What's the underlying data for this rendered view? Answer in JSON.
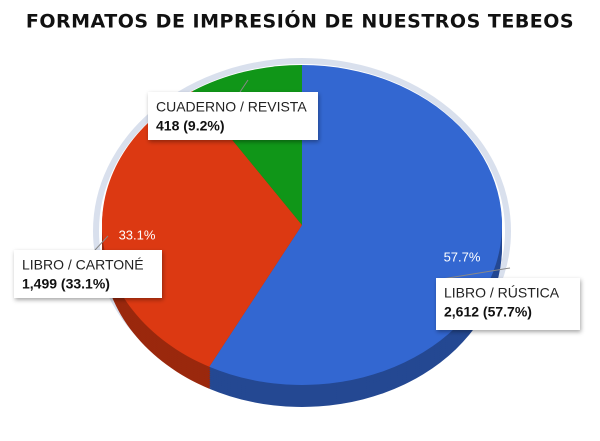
{
  "chart_data": {
    "type": "pie",
    "title": "FORMATOS DE IMPRESIÓN DE NUESTROS TEBEOS",
    "categories": [
      "LIBRO / RÚSTICA",
      "LIBRO / CARTONÉ",
      "CUADERNO / REVISTA"
    ],
    "values": [
      2612,
      1499,
      418
    ],
    "value_labels": [
      "2,612 (57.7%)",
      "1,499 (33.1%)",
      "418 (9.2%)"
    ],
    "percent_labels": [
      "57.7%",
      "33.1%",
      null
    ],
    "colors": [
      "#3367d1",
      "#dc3912",
      "#109618"
    ]
  }
}
